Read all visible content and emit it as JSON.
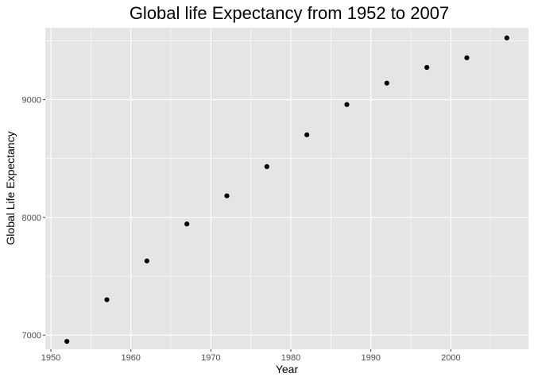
{
  "chart_data": {
    "type": "scatter",
    "title": "Global life Expectancy from 1952 to 2007",
    "xlabel": "Year",
    "ylabel": "Global Life Expectancy",
    "xlim": [
      1949.3,
      2009.7
    ],
    "ylim": [
      6880,
      9610
    ],
    "x_ticks": [
      1950,
      1960,
      1970,
      1980,
      1990,
      2000
    ],
    "y_ticks": [
      7000,
      8000,
      9000
    ],
    "grid": true,
    "legend": "none",
    "colors": {
      "panel": "#e5e5e5",
      "grid": "#ffffff",
      "point": "#000000",
      "tick_text": "#4d4d4d",
      "tick_mark": "#333333"
    },
    "x": [
      1952,
      1957,
      1962,
      1967,
      1972,
      1977,
      1982,
      1987,
      1992,
      1997,
      2002,
      2007
    ],
    "y": [
      6947,
      7301,
      7630,
      7944,
      8183,
      8431,
      8701,
      8958,
      9140,
      9273,
      9355,
      9524
    ]
  }
}
